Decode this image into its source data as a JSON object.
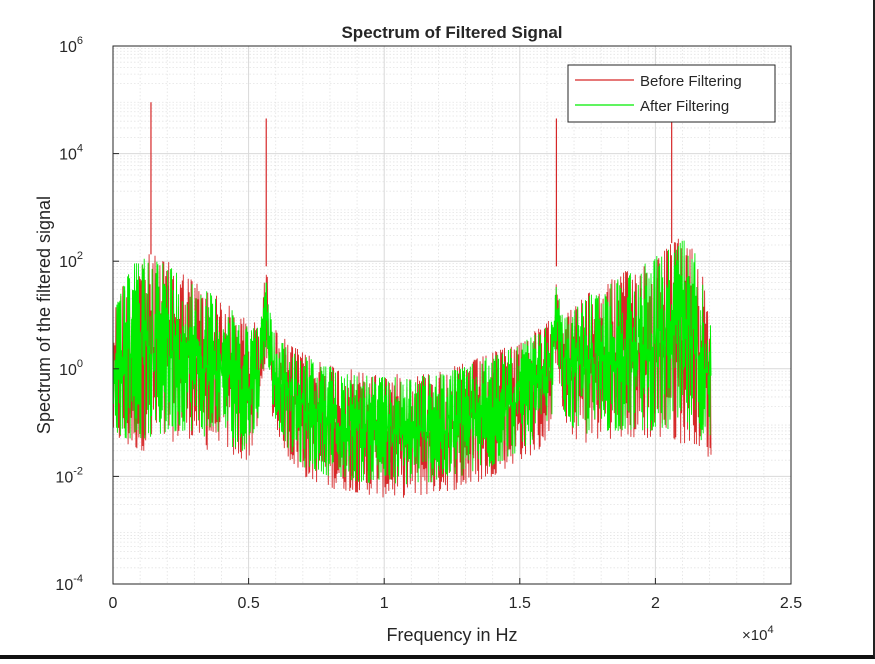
{
  "chart_data": {
    "type": "line",
    "title": "Spectrum of Filtered Signal",
    "xlabel": "Frequency in Hz",
    "ylabel": "Spectrum of the filtered signal",
    "x_multiplier_label": "×10",
    "x_multiplier_exp": "4",
    "xlim": [
      0,
      25000
    ],
    "ylim": [
      0.0001,
      1000000
    ],
    "yscale": "log",
    "grid": true,
    "minor_grid": true,
    "legend_position": "top-right",
    "x_ticks": [
      0,
      5000,
      10000,
      15000,
      20000,
      25000
    ],
    "x_tick_labels": [
      "0",
      "0.5",
      "1",
      "1.5",
      "2",
      "2.5"
    ],
    "y_ticks": [
      {
        "value": 0.0001,
        "base": "10",
        "exp": "-4"
      },
      {
        "value": 0.01,
        "base": "10",
        "exp": "-2"
      },
      {
        "value": 1,
        "base": "10",
        "exp": "0"
      },
      {
        "value": 100,
        "base": "10",
        "exp": "2"
      },
      {
        "value": 10000,
        "base": "10",
        "exp": "4"
      },
      {
        "value": 1000000,
        "base": "10",
        "exp": "6"
      }
    ],
    "series": [
      {
        "name": "Before Filtering",
        "color": "#d62728",
        "envelope_x": [
          0,
          500,
          1000,
          1500,
          2000,
          2500,
          3000,
          3500,
          4000,
          4500,
          5000,
          5400,
          5650,
          5900,
          6500,
          7000,
          8000,
          9000,
          10000,
          11000,
          12000,
          13000,
          14000,
          15000,
          15800,
          16200,
          16350,
          16600,
          17000,
          17500,
          18000,
          18500,
          19000,
          19500,
          20000,
          20500,
          21000,
          21500,
          22050
        ],
        "envelope_upper": [
          12,
          60,
          150,
          130,
          100,
          70,
          45,
          30,
          20,
          12,
          8,
          7,
          80,
          6,
          3,
          2,
          1.3,
          0.9,
          0.8,
          0.8,
          0.9,
          1.3,
          2,
          3.5,
          6,
          9,
          80,
          9,
          15,
          25,
          35,
          50,
          70,
          100,
          130,
          200,
          300,
          150,
          25
        ],
        "envelope_lower": [
          0.05,
          0.03,
          0.03,
          0.03,
          0.04,
          0.05,
          0.05,
          0.03,
          0.05,
          0.02,
          0.02,
          0.1,
          2,
          0.1,
          0.02,
          0.01,
          0.006,
          0.005,
          0.004,
          0.004,
          0.005,
          0.006,
          0.01,
          0.02,
          0.03,
          0.1,
          2,
          0.1,
          0.05,
          0.04,
          0.05,
          0.05,
          0.05,
          0.05,
          0.05,
          0.05,
          0.04,
          0.04,
          0.02
        ],
        "peaks": [
          {
            "x": 1400,
            "y": 90000
          },
          {
            "x": 5650,
            "y": 45000
          },
          {
            "x": 16350,
            "y": 45000
          },
          {
            "x": 20600,
            "y": 95000
          }
        ]
      },
      {
        "name": "After Filtering",
        "color": "#00ee00",
        "envelope_x": [
          0,
          500,
          1000,
          1500,
          2000,
          2500,
          3000,
          3500,
          4000,
          4500,
          5000,
          5400,
          5650,
          5900,
          6500,
          7000,
          8000,
          9000,
          10000,
          11000,
          12000,
          13000,
          14000,
          15000,
          15800,
          16200,
          16350,
          16600,
          17000,
          17500,
          18000,
          18500,
          19000,
          19500,
          20000,
          20500,
          21000,
          21500,
          22050
        ],
        "envelope_upper": [
          10,
          50,
          140,
          120,
          90,
          60,
          40,
          28,
          18,
          11,
          7,
          6,
          40,
          5,
          2.5,
          1.8,
          1.1,
          0.8,
          0.7,
          0.7,
          0.8,
          1.1,
          1.8,
          3,
          5,
          8,
          40,
          8,
          13,
          22,
          30,
          45,
          60,
          90,
          120,
          180,
          280,
          140,
          20
        ],
        "envelope_lower": [
          0.07,
          0.05,
          0.05,
          0.05,
          0.06,
          0.07,
          0.07,
          0.05,
          0.07,
          0.03,
          0.03,
          0.15,
          3,
          0.15,
          0.03,
          0.015,
          0.01,
          0.008,
          0.007,
          0.007,
          0.008,
          0.01,
          0.015,
          0.03,
          0.05,
          0.15,
          3,
          0.15,
          0.07,
          0.06,
          0.07,
          0.07,
          0.07,
          0.07,
          0.07,
          0.07,
          0.06,
          0.06,
          0.03
        ],
        "peaks": [
          {
            "x": 5650,
            "y": 20
          }
        ]
      }
    ]
  }
}
